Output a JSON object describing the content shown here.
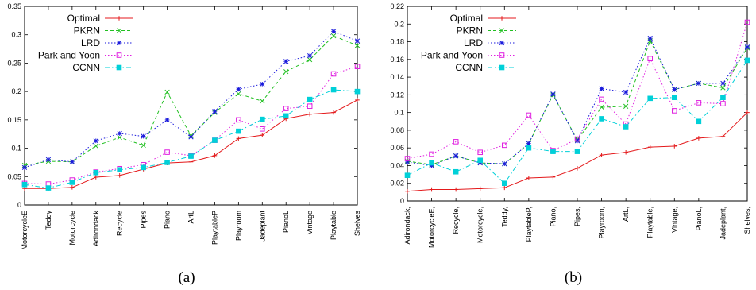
{
  "chart_data": [
    {
      "type": "line",
      "caption": "(a)",
      "title": "",
      "xlabel": "",
      "ylabel": "",
      "ylim": [
        0,
        0.35
      ],
      "yticks": [
        "0",
        "0.05",
        "0.1",
        "0.15",
        "0.2",
        "0.25",
        "0.3",
        "0.35"
      ],
      "grid": false,
      "legend": "top-left",
      "categories": [
        "MotorcycleE",
        "Teddy",
        "Motorcycle",
        "Adirondack",
        "Recycle",
        "Pipes",
        "Piano",
        "ArtL",
        "PlaytableP",
        "Playroom",
        "Jadeplant",
        "PianoL",
        "Vintage",
        "Playtable",
        "Shelves"
      ],
      "series": [
        {
          "name": "Optimal",
          "color": "#e41a1c",
          "marker": "plus",
          "dash": "solid",
          "values": [
            0.029,
            0.029,
            0.031,
            0.049,
            0.052,
            0.063,
            0.074,
            0.076,
            0.087,
            0.117,
            0.123,
            0.152,
            0.16,
            0.163,
            0.185
          ]
        },
        {
          "name": "PKRN",
          "color": "#22c022",
          "marker": "cross",
          "dash": "dash",
          "values": [
            0.07,
            0.077,
            0.076,
            0.104,
            0.119,
            0.105,
            0.199,
            0.122,
            0.163,
            0.196,
            0.183,
            0.235,
            0.256,
            0.298,
            0.281
          ]
        },
        {
          "name": "LRD",
          "color": "#1a1adc",
          "marker": "star",
          "dash": "dot",
          "values": [
            0.066,
            0.08,
            0.076,
            0.113,
            0.126,
            0.121,
            0.15,
            0.12,
            0.165,
            0.204,
            0.213,
            0.253,
            0.263,
            0.306,
            0.289
          ]
        },
        {
          "name": "Park and Yoon",
          "color": "#e020e0",
          "marker": "square",
          "dash": "dot",
          "values": [
            0.038,
            0.037,
            0.044,
            0.058,
            0.064,
            0.071,
            0.093,
            0.087,
            0.114,
            0.15,
            0.134,
            0.17,
            0.174,
            0.231,
            0.244
          ]
        },
        {
          "name": "CCNN",
          "color": "#00d0d8",
          "marker": "filled-square",
          "dash": "dashdot",
          "values": [
            0.036,
            0.03,
            0.04,
            0.057,
            0.062,
            0.066,
            0.075,
            0.086,
            0.114,
            0.13,
            0.151,
            0.157,
            0.186,
            0.203,
            0.2
          ]
        }
      ]
    },
    {
      "type": "line",
      "caption": "(b)",
      "title": "",
      "xlabel": "",
      "ylabel": "",
      "ylim": [
        0,
        0.22
      ],
      "yticks": [
        "0",
        "0.02",
        "0.04",
        "0.06",
        "0.08",
        "0.1",
        "0.12",
        "0.14",
        "0.16",
        "0.18",
        "0.2",
        "0.22"
      ],
      "grid": false,
      "legend": "top-left",
      "categories": [
        "Adirondack,",
        "MotorcycleE,",
        "Recycle,",
        "Motorcycle,",
        "Teddy,",
        "PlaytableP,",
        "Piano,",
        "Pipes,",
        "Playroom,",
        "ArtL,",
        "Playtable,",
        "Vintage,",
        "PianoL,",
        "Jadeplant,",
        "Shelves,"
      ],
      "series": [
        {
          "name": "Optimal",
          "color": "#e41a1c",
          "marker": "plus",
          "dash": "solid",
          "values": [
            0.011,
            0.013,
            0.013,
            0.014,
            0.015,
            0.026,
            0.027,
            0.037,
            0.052,
            0.055,
            0.061,
            0.062,
            0.071,
            0.073,
            0.1
          ]
        },
        {
          "name": "PKRN",
          "color": "#22c022",
          "marker": "cross",
          "dash": "dash",
          "values": [
            0.045,
            0.041,
            0.051,
            0.043,
            0.042,
            0.065,
            0.12,
            0.069,
            0.106,
            0.107,
            0.181,
            0.126,
            0.133,
            0.128,
            0.173
          ]
        },
        {
          "name": "LRD",
          "color": "#1a1adc",
          "marker": "star",
          "dash": "dot",
          "values": [
            0.044,
            0.04,
            0.051,
            0.043,
            0.042,
            0.065,
            0.121,
            0.068,
            0.127,
            0.123,
            0.184,
            0.126,
            0.133,
            0.133,
            0.174
          ]
        },
        {
          "name": "Park and Yoon",
          "color": "#e020e0",
          "marker": "square",
          "dash": "dot",
          "values": [
            0.048,
            0.053,
            0.067,
            0.055,
            0.063,
            0.097,
            0.057,
            0.07,
            0.115,
            0.087,
            0.161,
            0.102,
            0.111,
            0.11,
            0.202
          ]
        },
        {
          "name": "CCNN",
          "color": "#00d0d8",
          "marker": "filled-square",
          "dash": "dashdot",
          "values": [
            0.029,
            0.043,
            0.033,
            0.046,
            0.02,
            0.06,
            0.056,
            0.056,
            0.093,
            0.084,
            0.116,
            0.117,
            0.09,
            0.117,
            0.159
          ]
        }
      ]
    }
  ]
}
